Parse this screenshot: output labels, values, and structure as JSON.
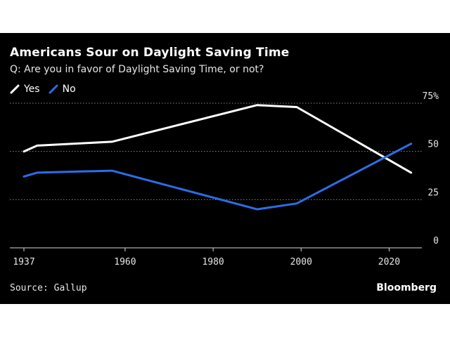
{
  "header": {
    "title": "Americans Sour on Daylight Saving Time",
    "subtitle": "Q: Are you in favor of Daylight Saving Time, or not?"
  },
  "legend": [
    {
      "label": "Yes",
      "color": "#ffffff"
    },
    {
      "label": "No",
      "color": "#2a6ee8"
    }
  ],
  "footer": {
    "source": "Source: Gallup",
    "brand": "Bloomberg"
  },
  "chart_data": {
    "type": "line",
    "title": "Americans Sour on Daylight Saving Time",
    "subtitle": "Q: Are you in favor of Daylight Saving Time, or not?",
    "xlabel": "",
    "ylabel": "",
    "xlim": [
      1937,
      2030
    ],
    "ylim": [
      0,
      75
    ],
    "xticks": [
      1937,
      1960,
      1980,
      2000,
      2020
    ],
    "yticks": [
      0,
      25,
      50,
      75
    ],
    "ytick_labels": [
      "0",
      "25",
      "50",
      "75%"
    ],
    "grid": "horizontal dotted",
    "legend_position": "top-left",
    "series": [
      {
        "name": "Yes",
        "color": "#ffffff",
        "x": [
          1937,
          1940,
          1957,
          1990,
          1999,
          2025
        ],
        "y": [
          50,
          53,
          55,
          74,
          73,
          39
        ]
      },
      {
        "name": "No",
        "color": "#2a6ee8",
        "x": [
          1937,
          1940,
          1957,
          1990,
          1999,
          2025
        ],
        "y": [
          37,
          39,
          40,
          20,
          23,
          54
        ]
      }
    ]
  }
}
